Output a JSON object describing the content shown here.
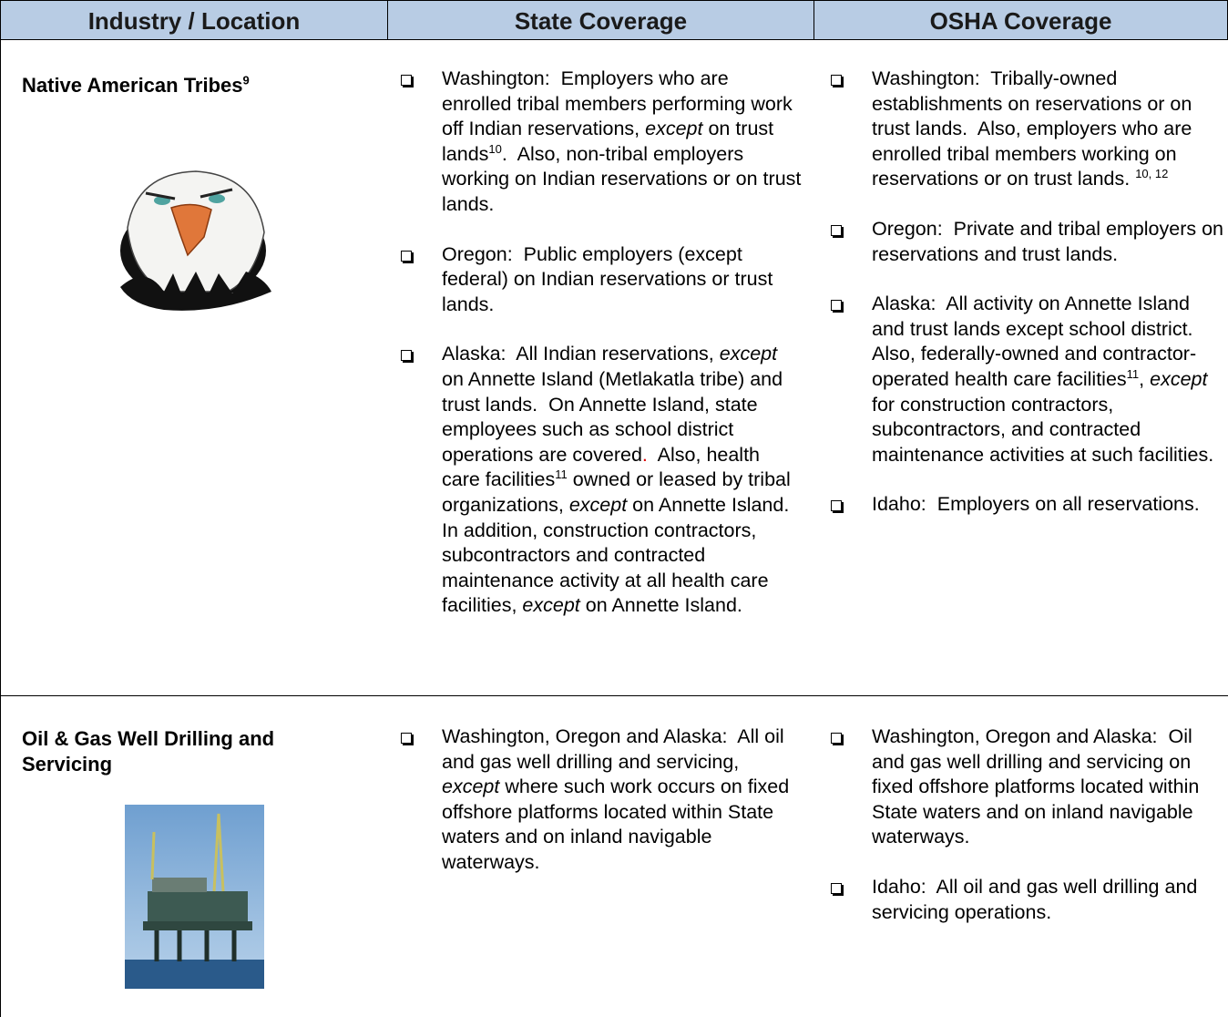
{
  "table": {
    "header": [
      "Industry / Location",
      "State Coverage",
      "OSHA Coverage"
    ],
    "rows": [
      {
        "title": [
          "Native American Tribes",
          {
            "text": "9",
            "style": "sup"
          }
        ],
        "state": [
          [
            "Washington:  Employers who are enrolled tribal members performing work off Indian reservations, ",
            {
              "text": "except",
              "style": "italic"
            },
            " on trust lands",
            {
              "text": "10",
              "style": "sup"
            },
            ".  Also, non-tribal employers working on Indian reservations or on trust lands."
          ],
          [
            "Oregon:  Public employers (except federal) on Indian reservations or trust lands."
          ],
          [
            "Alaska:  All Indian reservations, ",
            {
              "text": "except",
              "style": "italic"
            },
            " on Annette Island (Metlakatla tribe) and trust lands.  On Annette Island, state employees such as school district operations are covered",
            {
              "text": ".",
              "color": "#e00000"
            },
            "  Also, health care facilities",
            {
              "text": "11",
              "style": "sup"
            },
            " owned or leased by tribal organizations, ",
            {
              "text": "except",
              "style": "italic"
            },
            " on Annette Island.  In addition, construction contractors, subcontractors and contracted maintenance activity at all health care facilities, ",
            {
              "text": "except",
              "style": "italic"
            },
            " on Annette Island."
          ]
        ],
        "osha": [
          [
            "Washington:  Tribally-owned establishments on reservations or on trust lands.  Also, employers who are enrolled tribal members working on reservations or on trust lands. ",
            {
              "text": "10, 12",
              "style": "sup"
            }
          ],
          [
            "Oregon:  Private and tribal employers on reservations and trust lands."
          ],
          [
            "Alaska:  All activity on Annette Island and trust lands except school district.  Also, federally-owned and contractor-operated health care facilities",
            {
              "text": "11",
              "style": "sup"
            },
            ", ",
            {
              "text": "except",
              "style": "italic"
            },
            " for construction contractors, subcontractors, and contracted maintenance activities at such facilities."
          ],
          [
            "Idaho:  Employers on all reservations."
          ]
        ]
      },
      {
        "title": [
          "Oil & Gas Well Drilling and Servicing"
        ],
        "state": [
          [
            "Washington, Oregon and Alaska:  All oil and gas well drilling and servicing, ",
            {
              "text": "except",
              "style": "italic"
            },
            " where such work occurs on fixed offshore platforms located within State waters and on inland navigable waterways."
          ]
        ],
        "osha": [
          [
            "Washington, Oregon and Alaska:  Oil and gas well drilling and servicing on fixed offshore platforms located within State waters and on inland navigable waterways."
          ],
          [
            "Idaho:  All oil and gas well drilling and servicing operations."
          ]
        ]
      }
    ]
  }
}
